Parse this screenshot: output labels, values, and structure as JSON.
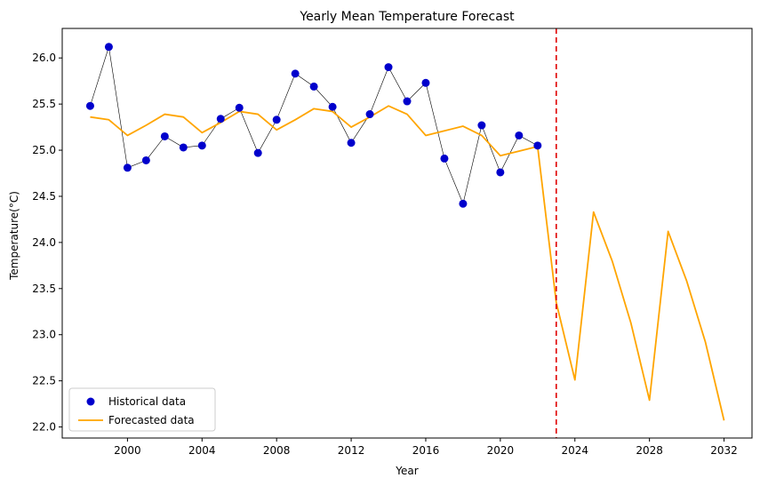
{
  "chart_data": {
    "type": "line",
    "title": "Yearly Mean Temperature Forecast",
    "xlabel": "Year",
    "ylabel": "Temperature(°C)",
    "xlim": [
      1996.5,
      2033.5
    ],
    "ylim": [
      21.88,
      26.32
    ],
    "x_ticks": [
      2000,
      2004,
      2008,
      2012,
      2016,
      2020,
      2024,
      2028,
      2032
    ],
    "y_ticks": [
      22.0,
      22.5,
      23.0,
      23.5,
      24.0,
      24.5,
      25.0,
      25.5,
      26.0
    ],
    "grid": false,
    "legend_position": "lower-left",
    "forecast_start_line": 2023,
    "series": [
      {
        "name": "Historical data",
        "style": "scatter-with-line",
        "color": "#0000cc",
        "line_color": "#000000",
        "x": [
          1998,
          1999,
          2000,
          2001,
          2002,
          2003,
          2004,
          2005,
          2006,
          2007,
          2008,
          2009,
          2010,
          2011,
          2012,
          2013,
          2014,
          2015,
          2016,
          2017,
          2018,
          2019,
          2020,
          2021,
          2022
        ],
        "values": [
          25.48,
          26.12,
          24.81,
          24.89,
          25.15,
          25.03,
          25.05,
          25.34,
          25.46,
          24.97,
          25.33,
          25.83,
          25.69,
          25.47,
          25.08,
          25.39,
          25.9,
          25.53,
          25.73,
          24.91,
          24.42,
          25.27,
          24.76,
          25.16,
          25.05
        ]
      },
      {
        "name": "Forecasted data",
        "style": "line",
        "color": "#ffa500",
        "x": [
          1998,
          1999,
          2000,
          2001,
          2002,
          2003,
          2004,
          2005,
          2006,
          2007,
          2008,
          2009,
          2010,
          2011,
          2012,
          2013,
          2014,
          2015,
          2016,
          2017,
          2018,
          2019,
          2020,
          2021,
          2022,
          2023,
          2024,
          2025,
          2026,
          2027,
          2028,
          2029,
          2030,
          2031,
          2032
        ],
        "values": [
          25.36,
          25.33,
          25.16,
          25.27,
          25.39,
          25.36,
          25.19,
          25.3,
          25.42,
          25.39,
          25.22,
          25.33,
          25.45,
          25.42,
          25.25,
          25.36,
          25.48,
          25.39,
          25.16,
          25.21,
          25.26,
          25.16,
          24.94,
          24.99,
          25.04,
          23.35,
          22.51,
          24.33,
          23.8,
          23.13,
          22.29,
          24.12,
          23.58,
          22.92,
          22.07
        ]
      }
    ]
  }
}
